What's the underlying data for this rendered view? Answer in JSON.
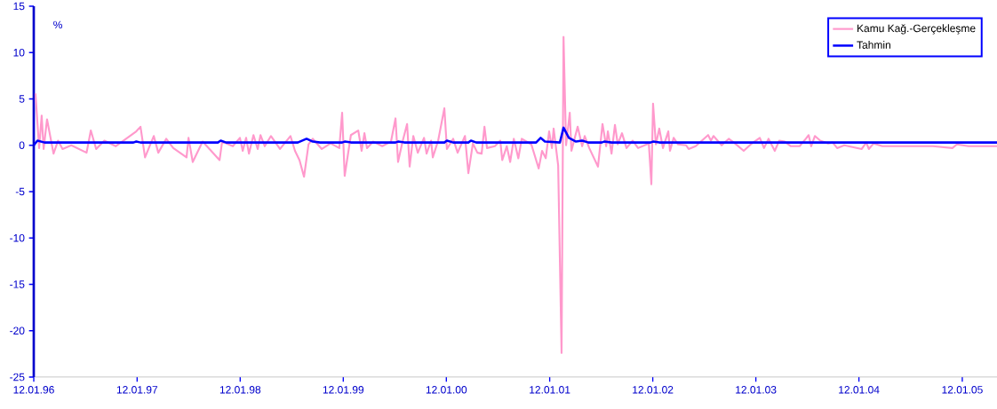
{
  "chart_data": {
    "type": "line",
    "ylabel": "%",
    "legend": "top right",
    "xlim": [
      "1996-01-12",
      "2005-05-15"
    ],
    "ylim": [
      -25,
      15
    ],
    "yticks": [
      -25,
      -20,
      -15,
      -10,
      -5,
      0,
      5,
      10,
      15
    ],
    "xticks": [
      {
        "value": "1996-01-12",
        "label": "12.01.96"
      },
      {
        "value": "1997-01-12",
        "label": "12.01.97"
      },
      {
        "value": "1998-01-12",
        "label": "12.01.98"
      },
      {
        "value": "1999-01-12",
        "label": "12.01.99"
      },
      {
        "value": "2000-01-12",
        "label": "12.01.00"
      },
      {
        "value": "2001-01-12",
        "label": "12.01.01"
      },
      {
        "value": "2002-01-12",
        "label": "12.01.02"
      },
      {
        "value": "2003-01-12",
        "label": "12.01.03"
      },
      {
        "value": "2004-01-12",
        "label": "12.01.04"
      },
      {
        "value": "2005-01-12",
        "label": "12.01.05"
      }
    ],
    "series": [
      {
        "name": "Kamu Kağ.-Gerçekleşme",
        "color": "#ff99cc",
        "x": [
          "1996-01-18",
          "1996-01-31",
          "1996-02-09",
          "1996-02-16",
          "1996-02-28",
          "1996-03-22",
          "1996-04-07",
          "1996-04-23",
          "1996-05-24",
          "1996-07-17",
          "1996-08-01",
          "1996-08-20",
          "1996-09-18",
          "1996-10-28",
          "1997-01-09",
          "1997-01-24",
          "1997-02-09",
          "1997-03-12",
          "1997-03-28",
          "1997-04-25",
          "1997-05-20",
          "1997-07-06",
          "1997-07-13",
          "1997-07-28",
          "1997-09-01",
          "1997-10-31",
          "1997-11-09",
          "1997-12-17",
          "1998-01-11",
          "1998-01-21",
          "1998-02-02",
          "1998-02-12",
          "1998-02-28",
          "1998-03-15",
          "1998-03-25",
          "1998-04-09",
          "1998-05-01",
          "1998-06-02",
          "1998-07-09",
          "1998-07-25",
          "1998-08-10",
          "1998-08-26",
          "1998-09-11",
          "1998-09-26",
          "1998-10-28",
          "1998-11-28",
          "1998-12-29",
          "1999-01-08",
          "1999-01-17",
          "1999-02-08",
          "1999-03-06",
          "1999-03-18",
          "1999-03-28",
          "1999-04-06",
          "1999-04-28",
          "1999-05-30",
          "1999-06-30",
          "1999-07-16",
          "1999-07-25",
          "1999-08-10",
          "1999-08-26",
          "1999-09-04",
          "1999-09-17",
          "1999-10-03",
          "1999-10-25",
          "1999-11-03",
          "1999-11-19",
          "1999-11-25",
          "1999-12-14",
          "2000-01-05",
          "2000-01-14",
          "2000-02-05",
          "2000-02-21",
          "2000-03-18",
          "2000-03-30",
          "2000-04-15",
          "2000-05-01",
          "2000-05-16",
          "2000-05-26",
          "2000-06-04",
          "2000-07-02",
          "2000-07-21",
          "2000-07-28",
          "2000-08-13",
          "2000-08-25",
          "2000-09-07",
          "2000-09-23",
          "2000-10-05",
          "2000-11-08",
          "2000-12-04",
          "2000-12-16",
          "2000-12-29",
          "2001-01-10",
          "2001-01-20",
          "2001-01-26",
          "2001-02-11",
          "2001-02-23",
          "2001-03-02",
          "2001-03-11",
          "2001-03-24",
          "2001-03-30",
          "2001-04-21",
          "2001-05-07",
          "2001-05-16",
          "2001-06-01",
          "2001-07-02",
          "2001-07-18",
          "2001-07-31",
          "2001-08-06",
          "2001-08-19",
          "2001-08-31",
          "2001-09-10",
          "2001-09-25",
          "2001-10-11",
          "2001-11-02",
          "2001-11-21",
          "2001-12-29",
          "2002-01-07",
          "2002-01-13",
          "2002-01-23",
          "2002-02-04",
          "2002-02-17",
          "2002-03-08",
          "2002-03-14",
          "2002-03-27",
          "2002-04-11",
          "2002-05-10",
          "2002-05-19",
          "2002-06-13",
          "2002-07-27",
          "2002-08-06",
          "2002-08-15",
          "2002-09-13",
          "2002-10-08",
          "2002-10-30",
          "2002-11-30",
          "2002-12-25",
          "2003-01-26",
          "2003-02-10",
          "2003-02-26",
          "2003-03-20",
          "2003-04-05",
          "2003-04-24",
          "2003-05-16",
          "2003-06-16",
          "2003-07-08",
          "2003-07-18",
          "2003-07-27",
          "2003-08-09",
          "2003-08-28",
          "2003-09-25",
          "2003-10-11",
          "2003-10-27",
          "2003-11-21",
          "2004-01-22",
          "2004-02-07",
          "2004-02-16",
          "2004-03-04",
          "2004-04-04",
          "2004-09-30",
          "2004-12-08",
          "2004-12-24",
          "2005-02-03",
          "2005-05-15"
        ],
        "values": [
          5.6,
          -0.3,
          3.2,
          -0.4,
          2.8,
          -0.9,
          0.5,
          -0.4,
          0,
          -0.8,
          1.6,
          -0.4,
          0.5,
          -0.1,
          1.5,
          2.0,
          -1.3,
          1.0,
          -0.8,
          0.7,
          -0.3,
          -1.3,
          0.8,
          -1.8,
          0.4,
          -1.6,
          0.4,
          -0.1,
          0.8,
          -0.6,
          0.8,
          -0.9,
          1.1,
          -0.4,
          1.1,
          -0.1,
          1.0,
          -0.4,
          1.0,
          -0.6,
          -1.6,
          -3.4,
          0.1,
          0.7,
          -0.4,
          0.2,
          -0.3,
          3.5,
          -3.3,
          1.1,
          1.6,
          -0.6,
          1.3,
          -0.3,
          0.4,
          -0.1,
          0.4,
          2.9,
          -1.8,
          0.4,
          2.3,
          -2.3,
          1.0,
          -0.8,
          0.8,
          -0.9,
          0.5,
          -1.3,
          0.5,
          4.0,
          -0.4,
          0.7,
          -0.8,
          1.0,
          -3.0,
          0.2,
          -0.8,
          -0.9,
          2.0,
          -0.3,
          -0.1,
          0.5,
          -1.6,
          -0.1,
          -1.8,
          0.7,
          -1.4,
          0.7,
          0.1,
          -2.5,
          -0.6,
          -1.4,
          1.5,
          -0.3,
          1.8,
          -2.2,
          -22.4,
          11.7,
          0,
          3.5,
          -0.6,
          2.0,
          -0.1,
          1.0,
          -0.3,
          -2.3,
          2.3,
          -0.1,
          1.5,
          -0.9,
          2.2,
          0.1,
          1.3,
          -0.3,
          0.5,
          -0.3,
          0.2,
          -4.2,
          4.5,
          0.1,
          1.8,
          -0.3,
          1.5,
          -0.6,
          0.8,
          0.1,
          0,
          -0.4,
          -0.1,
          1.1,
          0.5,
          1.0,
          0,
          0.7,
          0.2,
          -0.6,
          0.1,
          0.8,
          -0.3,
          0.7,
          -0.6,
          0.5,
          0.4,
          -0.1,
          -0.1,
          0.7,
          1.1,
          -0.1,
          1.0,
          0.5,
          0.2,
          0.3,
          -0.3,
          0,
          -0.4,
          0.3,
          -0.4,
          0.2,
          -0.1,
          -0.1,
          -0.3,
          0.1,
          -0.1,
          -0.1
        ]
      },
      {
        "name": "Tahmin",
        "color": "#0000ff",
        "x": [
          "1996-01-12",
          "1996-01-25",
          "1996-02-19",
          "1996-12-30",
          "1997-01-09",
          "1997-01-24",
          "1997-10-25",
          "1997-11-04",
          "1997-11-23",
          "1998-08-04",
          "1998-09-04",
          "1998-09-26",
          "1998-10-22",
          "1999-01-08",
          "1999-01-17",
          "1999-02-08",
          "1999-07-16",
          "1999-07-25",
          "1999-08-16",
          "2000-01-05",
          "2000-01-14",
          "2000-02-05",
          "2000-03-30",
          "2000-04-08",
          "2000-04-27",
          "2000-11-25",
          "2000-12-11",
          "2000-12-26",
          "2001-02-17",
          "2001-03-02",
          "2001-03-21",
          "2001-04-15",
          "2001-05-07",
          "2001-05-29",
          "2001-07-15",
          "2001-07-24",
          "2001-08-19",
          "2002-01-04",
          "2002-01-13",
          "2002-02-04",
          "2005-05-15"
        ],
        "values": [
          0,
          0.5,
          0.3,
          0.3,
          0.4,
          0.3,
          0.3,
          0.5,
          0.3,
          0.3,
          0.7,
          0.4,
          0.3,
          0.3,
          0.4,
          0.3,
          0.3,
          0.4,
          0.3,
          0.3,
          0.5,
          0.3,
          0.3,
          0.5,
          0.3,
          0.3,
          0.8,
          0.4,
          0.3,
          1.9,
          0.8,
          0.4,
          0.5,
          0.3,
          0.3,
          0.4,
          0.3,
          0.3,
          0.4,
          0.3,
          0.3
        ]
      }
    ]
  }
}
